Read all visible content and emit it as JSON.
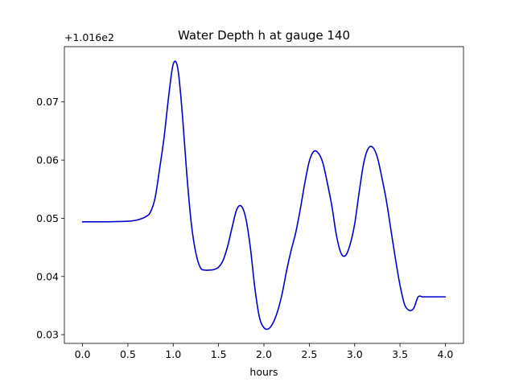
{
  "chart_data": {
    "type": "line",
    "title": "Water Depth h at gauge 140",
    "xlabel": "hours",
    "ylabel": "",
    "y_offset_label": "+1.016e2",
    "xlim": [
      -0.2,
      4.2
    ],
    "ylim": [
      0.0285,
      0.0795
    ],
    "x_ticks": [
      0.0,
      0.5,
      1.0,
      1.5,
      2.0,
      2.5,
      3.0,
      3.5,
      4.0
    ],
    "x_tick_labels": [
      "0.0",
      "0.5",
      "1.0",
      "1.5",
      "2.0",
      "2.5",
      "3.0",
      "3.5",
      "4.0"
    ],
    "y_ticks": [
      0.03,
      0.04,
      0.05,
      0.06,
      0.07
    ],
    "y_tick_labels": [
      "0.03",
      "0.04",
      "0.05",
      "0.06",
      "0.07"
    ],
    "grid": false,
    "line_color": "#0000cc",
    "series": [
      {
        "x": [
          0.0,
          0.25,
          0.5,
          0.6,
          0.7,
          0.75,
          0.8,
          0.85,
          0.9,
          0.95,
          1.0,
          1.05,
          1.1,
          1.15,
          1.2,
          1.25,
          1.3,
          1.35,
          1.4,
          1.45,
          1.5,
          1.55,
          1.6,
          1.65,
          1.7,
          1.75,
          1.8,
          1.85,
          1.9,
          1.95,
          2.0,
          2.05,
          2.1,
          2.15,
          2.2,
          2.25,
          2.3,
          2.35,
          2.4,
          2.45,
          2.5,
          2.55,
          2.6,
          2.65,
          2.7,
          2.75,
          2.8,
          2.85,
          2.9,
          2.95,
          3.0,
          3.05,
          3.1,
          3.15,
          3.2,
          3.25,
          3.3,
          3.35,
          3.4,
          3.45,
          3.5,
          3.55,
          3.6,
          3.65,
          3.7,
          3.75,
          3.8,
          3.85,
          3.9,
          3.95,
          4.0
        ],
        "y": [
          0.0494,
          0.0494,
          0.0495,
          0.0497,
          0.0503,
          0.0511,
          0.0535,
          0.0585,
          0.064,
          0.071,
          0.0765,
          0.0758,
          0.068,
          0.0575,
          0.049,
          0.044,
          0.0415,
          0.0411,
          0.0411,
          0.0412,
          0.0416,
          0.0428,
          0.0452,
          0.0485,
          0.0515,
          0.0521,
          0.05,
          0.045,
          0.038,
          0.033,
          0.0312,
          0.031,
          0.032,
          0.034,
          0.037,
          0.041,
          0.0445,
          0.0475,
          0.0515,
          0.056,
          0.0598,
          0.0615,
          0.0612,
          0.0595,
          0.056,
          0.052,
          0.047,
          0.044,
          0.0436,
          0.0455,
          0.049,
          0.0545,
          0.0595,
          0.062,
          0.0622,
          0.0605,
          0.057,
          0.053,
          0.048,
          0.043,
          0.0385,
          0.0352,
          0.0342,
          0.0345,
          0.0365,
          0.0365,
          0.0365,
          0.0365,
          0.0365,
          0.0365,
          0.0365
        ]
      }
    ]
  }
}
